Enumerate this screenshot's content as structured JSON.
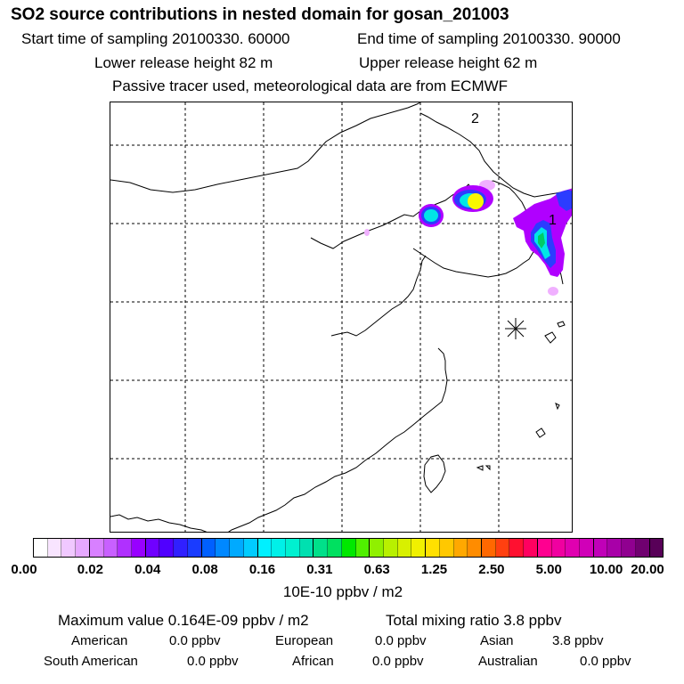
{
  "header": {
    "title": "SO2 source contributions in nested domain for gosan_201003",
    "start_time": "Start time of sampling 20100330. 60000",
    "end_time": "End time of sampling 20100330. 90000",
    "lower_height": "Lower release height   82 m",
    "upper_height": "Upper release height   62 m",
    "tracer_note": "Passive tracer used, meteorological data are from ECMWF"
  },
  "map": {
    "labels": {
      "marker_1": "1",
      "marker_2": "2"
    },
    "station_marker_icon": "asterisk-star-icon",
    "plume_colors": {
      "outer": "#b000ff",
      "faint": "#f0b0ff",
      "blue": "#2c3cff",
      "cyan": "#00e6e6",
      "green": "#00cc66",
      "yellow": "#f8f800"
    }
  },
  "colorbar": {
    "unit": "10E-10 ppbv / m2",
    "ticks": [
      "0.00",
      "0.02",
      "0.04",
      "0.08",
      "0.16",
      "0.31",
      "0.63",
      "1.25",
      "2.50",
      "5.00",
      "10.00",
      "20.00"
    ],
    "colors": [
      "#ffffff",
      "#f8e4ff",
      "#f0c8ff",
      "#e6a8ff",
      "#d880ff",
      "#c860ff",
      "#b030ff",
      "#9800ff",
      "#7000ff",
      "#5000ff",
      "#3020ff",
      "#1a3cff",
      "#0060ff",
      "#0088ff",
      "#00aaff",
      "#00ccff",
      "#00f0ff",
      "#00f0e8",
      "#00f0d0",
      "#00e0b0",
      "#00e08a",
      "#00e060",
      "#00e800",
      "#50f000",
      "#90f000",
      "#b8f000",
      "#d8f000",
      "#f0f000",
      "#ffe000",
      "#ffc800",
      "#ffa800",
      "#ff8c00",
      "#ff6800",
      "#ff4010",
      "#ff1030",
      "#ff0060",
      "#ff0090",
      "#f000a0",
      "#e000b0",
      "#d000b8",
      "#c000b8",
      "#a800a8",
      "#900090",
      "#700070",
      "#580058"
    ]
  },
  "summary": {
    "max_value": "Maximum value  0.164E-09 ppbv / m2",
    "total_mixing": "Total mixing ratio        3.8 ppbv",
    "american_label": "American",
    "american_value": "0.0 ppbv",
    "european_label": "European",
    "european_value": "0.0 ppbv",
    "asian_label": "Asian",
    "asian_value": "3.8 ppbv",
    "south_american_label": "South American",
    "south_american_value": "0.0 ppbv",
    "african_label": "African",
    "african_value": "0.0 ppbv",
    "australian_label": "Australian",
    "australian_value": "0.0 ppbv"
  }
}
